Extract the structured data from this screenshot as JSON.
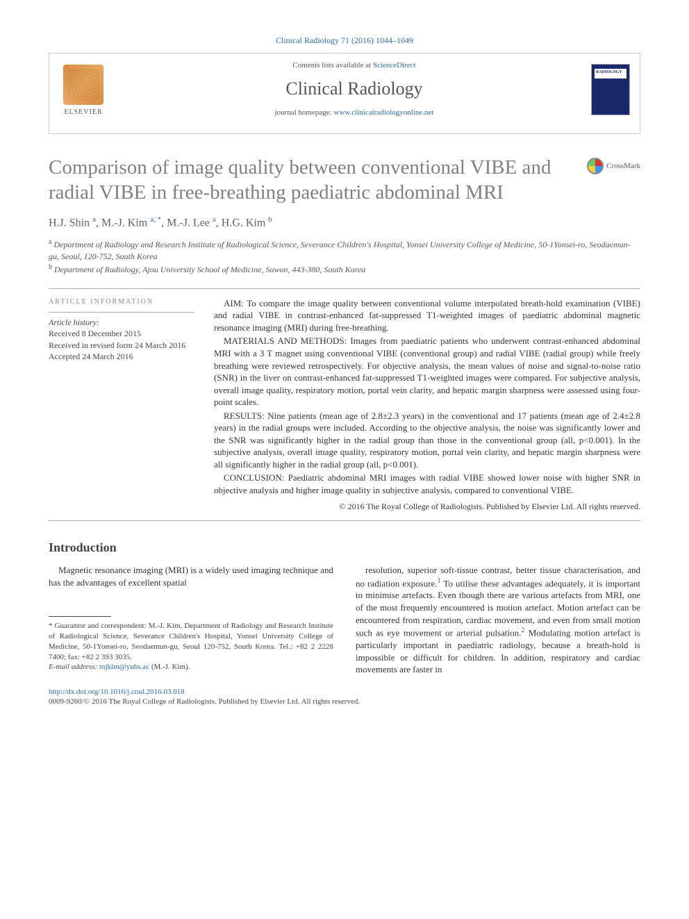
{
  "citation": "Clinical Radiology 71 (2016) 1044–1049",
  "header": {
    "publisher": "ELSEVIER",
    "contents_prefix": "Contents lists available at ",
    "contents_link": "ScienceDirect",
    "journal": "Clinical Radiology",
    "homepage_prefix": "journal homepage: ",
    "homepage_link": "www.clinicalradiologyonline.net",
    "cover_label": "RADIOLOGY"
  },
  "crossmark": "CrossMark",
  "title": "Comparison of image quality between conventional VIBE and radial VIBE in free-breathing paediatric abdominal MRI",
  "authors_html": "H.J. Shin <sup>a</sup>, M.-J. Kim <sup>a, *</sup>, M.-J. Lee <sup>a</sup>, H.G. Kim <sup>b</sup>",
  "affiliations": {
    "a": "Department of Radiology and Research Institute of Radiological Science, Severance Children's Hospital, Yonsei University College of Medicine, 50-1Yonsei-ro, Seodaemun-gu, Seoul, 120-752, South Korea",
    "b": "Department of Radiology, Ajou University School of Medicine, Suwon, 443-380, South Korea"
  },
  "article_info": {
    "heading": "ARTICLE INFORMATION",
    "history_label": "Article history:",
    "received": "Received 8 December 2015",
    "revised": "Received in revised form 24 March 2016",
    "accepted": "Accepted 24 March 2016"
  },
  "abstract": {
    "aim": "AIM: To compare the image quality between conventional volume interpolated breath-hold examination (VIBE) and radial VIBE in contrast-enhanced fat-suppressed T1-weighted images of paediatric abdominal magnetic resonance imaging (MRI) during free-breathing.",
    "methods": "MATERIALS AND METHODS: Images from paediatric patients who underwent contrast-enhanced abdominal MRI with a 3 T magnet using conventional VIBE (conventional group) and radial VIBE (radial group) while freely breathing were reviewed retrospectively. For objective analysis, the mean values of noise and signal-to-noise ratio (SNR) in the liver on contrast-enhanced fat-suppressed T1-weighted images were compared. For subjective analysis, overall image quality, respiratory motion, portal vein clarity, and hepatic margin sharpness were assessed using four-point scales.",
    "results": "RESULTS: Nine patients (mean age of 2.8±2.3 years) in the conventional and 17 patients (mean age of 2.4±2.8 years) in the radial groups were included. According to the objective analysis, the noise was significantly lower and the SNR was significantly higher in the radial group than those in the conventional group (all, p<0.001). In the subjective analysis, overall image quality, respiratory motion, portal vein clarity, and hepatic margin sharpness were all significantly higher in the radial group (all, p<0.001).",
    "conclusion": "CONCLUSION: Paediatric abdominal MRI images with radial VIBE showed lower noise with higher SNR in objective analysis and higher image quality in subjective analysis, compared to conventional VIBE.",
    "copyright": "© 2016 The Royal College of Radiologists. Published by Elsevier Ltd. All rights reserved."
  },
  "intro": {
    "heading": "Introduction",
    "col1": "Magnetic resonance imaging (MRI) is a widely used imaging technique and has the advantages of excellent spatial",
    "col2": "resolution, superior soft-tissue contrast, better tissue characterisation, and no radiation exposure.¹ To utilise these advantages adequately, it is important to minimise artefacts. Even though there are various artefacts from MRI, one of the most frequently encountered is motion artefact. Motion artefact can be encountered from respiration, cardiac movement, and even from small motion such as eye movement or arterial pulsation.² Modulating motion artefact is particularly important in paediatric radiology, because a breath-hold is impossible or difficult for children. In addition, respiratory and cardiac movements are faster in"
  },
  "footnote": {
    "corr": "* Guarantor and correspondent: M.-J. Kim, Department of Radiology and Research Institute of Radiological Science, Severance Children's Hospital, Yonsei University College of Medicine, 50-1Yonsei-ro, Seodaemun-gu, Seoul 120-752, South Korea. Tel.: +82 2 2228 7400; fax: +82 2 393 3035.",
    "email_label": "E-mail address: ",
    "email": "mjkim@yuhs.ac",
    "email_suffix": " (M.-J. Kim)."
  },
  "footer": {
    "doi": "http://dx.doi.org/10.1016/j.crad.2016.03.018",
    "issn_copy": "0009-9260/© 2016 The Royal College of Radiologists. Published by Elsevier Ltd. All rights reserved."
  },
  "colors": {
    "link": "#2d6aa3",
    "title_gray": "#808080",
    "rule": "#aaaaaa"
  }
}
